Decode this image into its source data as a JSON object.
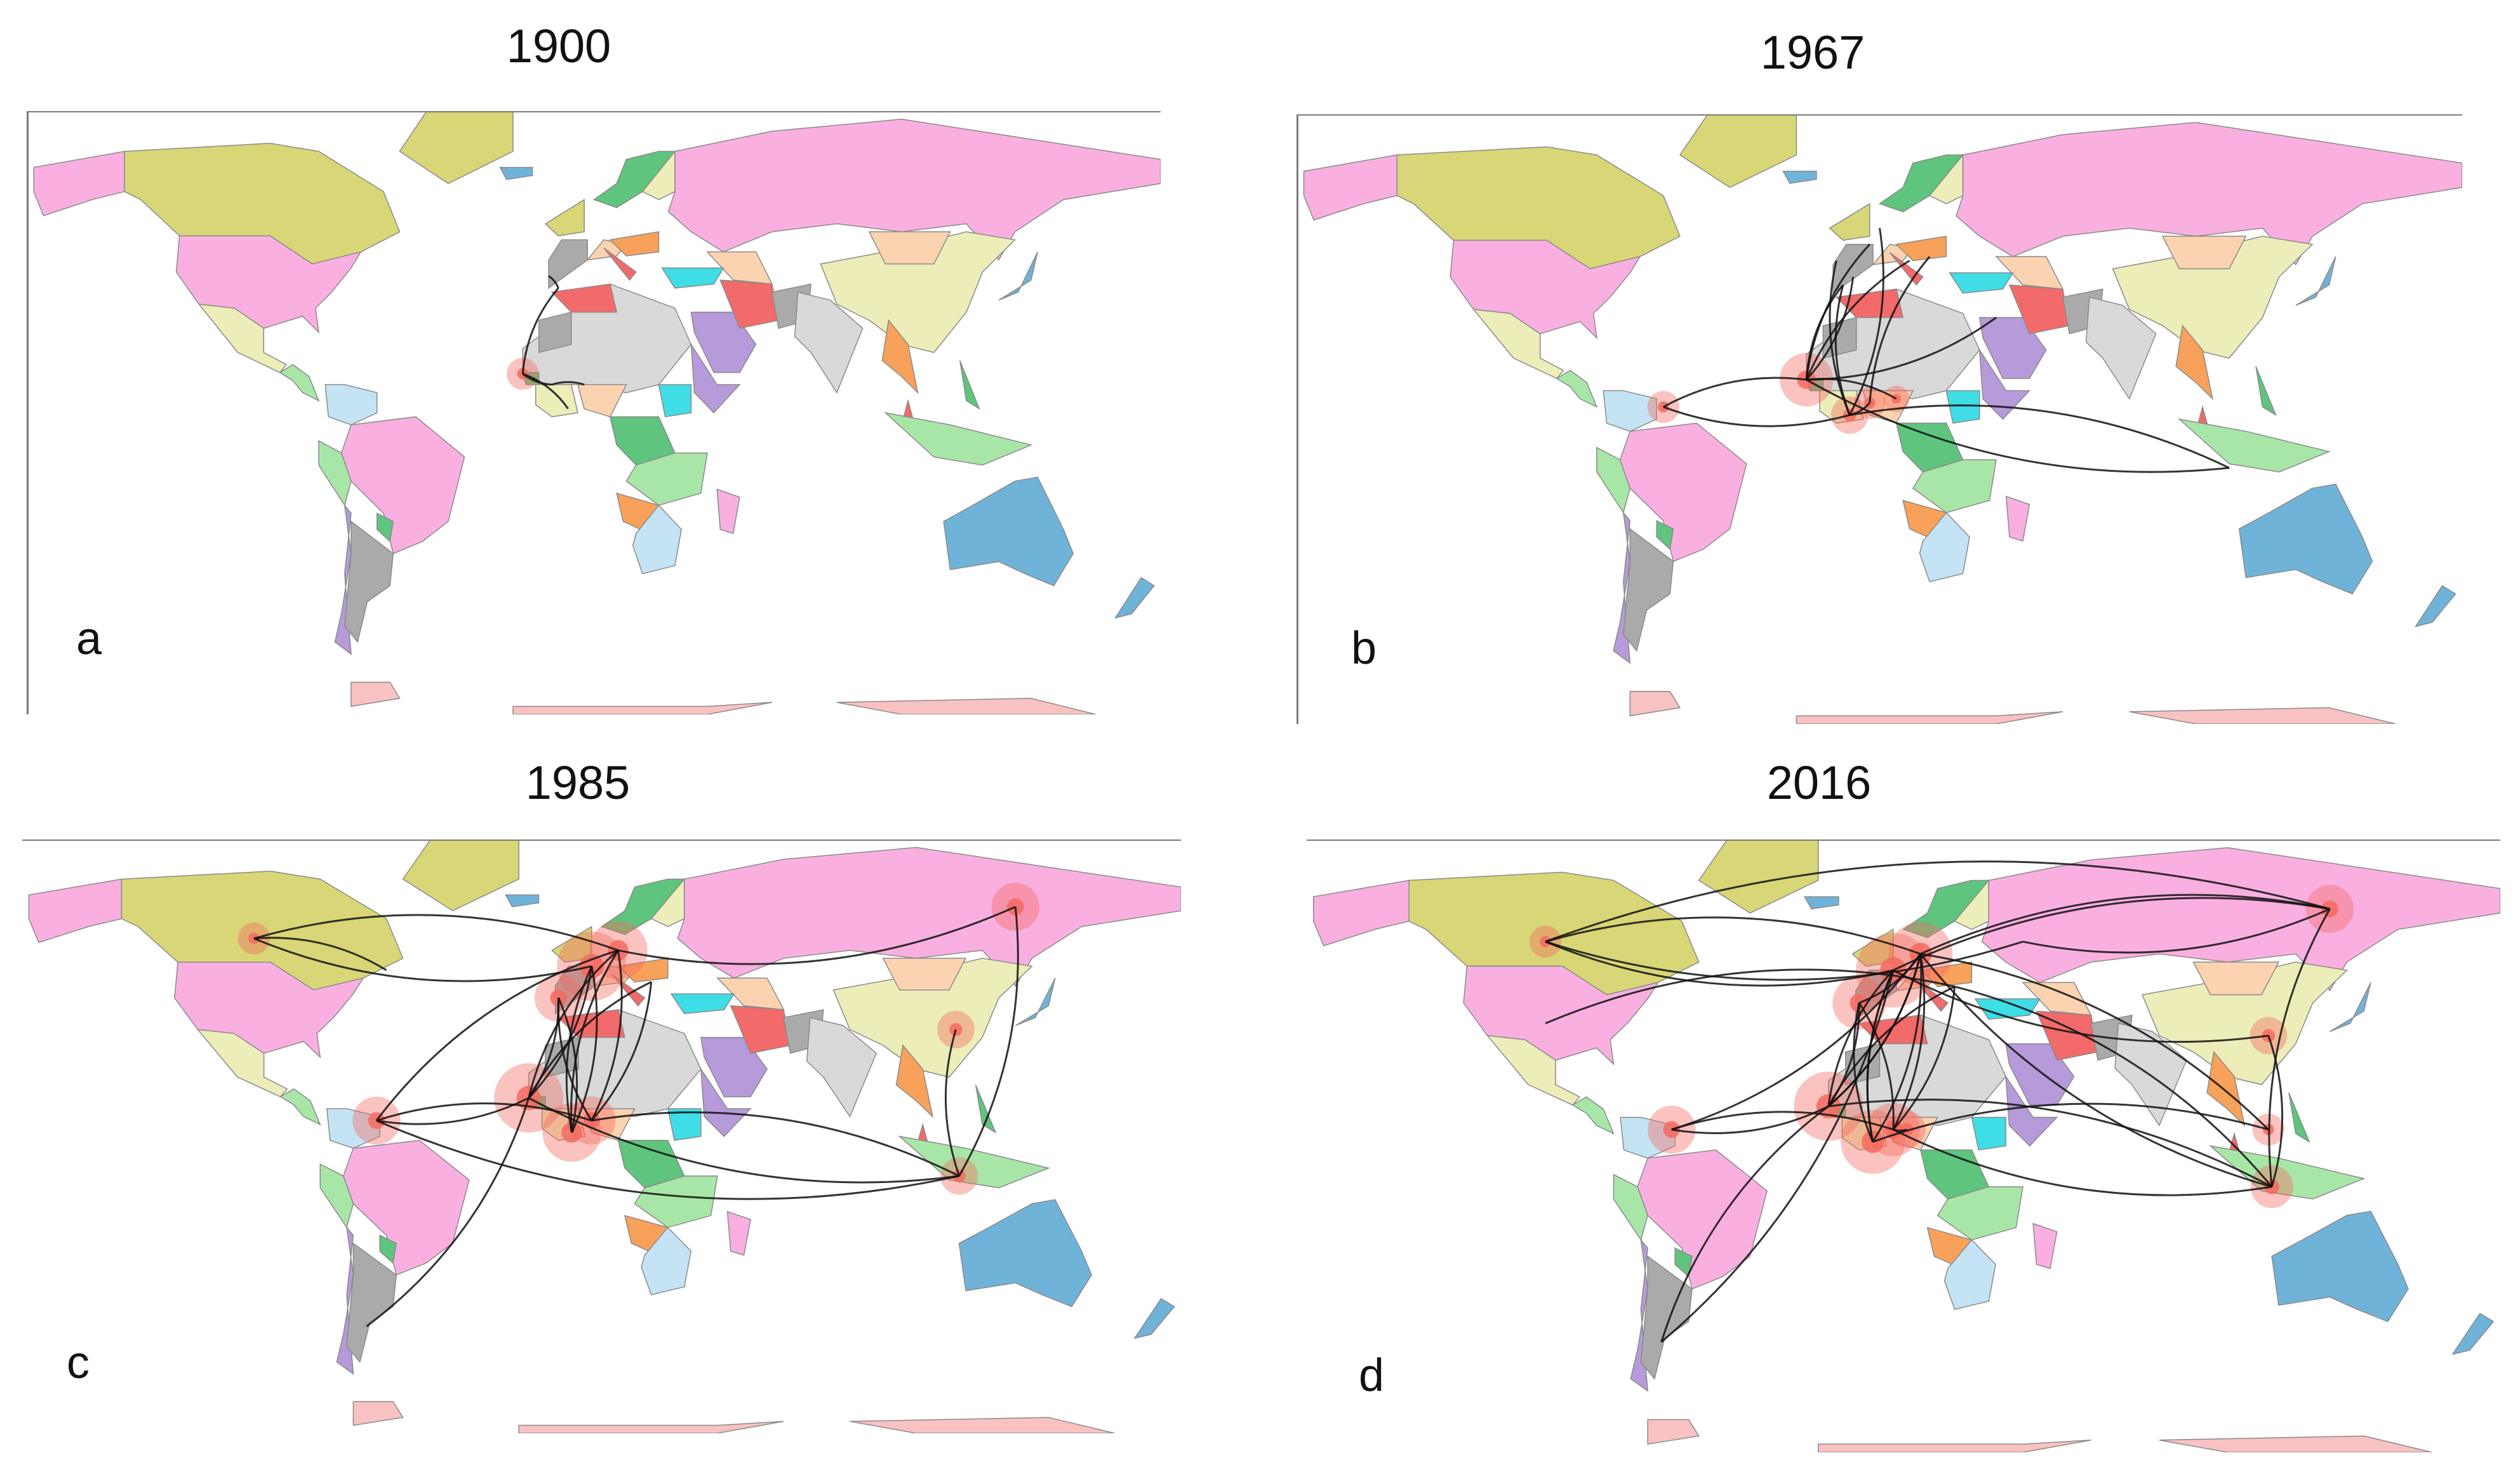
{
  "panels": [
    {
      "id": "a",
      "year": "1900",
      "letter": "a",
      "hubs": [
        [
          -17,
          14.7,
          12
        ]
      ],
      "links": [
        [
          -17,
          14.7,
          -6,
          36
        ],
        [
          -17,
          14.7,
          -8,
          12
        ],
        [
          -8,
          12,
          2,
          12
        ],
        [
          -6,
          36,
          -9,
          39
        ],
        [
          -17,
          14.7,
          -3,
          6
        ]
      ]
    },
    {
      "id": "b",
      "year": "1967",
      "letter": "b",
      "hubs": [
        [
          -17,
          14.7,
          20
        ],
        [
          -4,
          6,
          14
        ],
        [
          -60,
          8,
          12
        ],
        [
          2,
          9,
          12
        ],
        [
          10,
          10,
          10
        ]
      ],
      "links": [
        [
          -17,
          14.7,
          -6,
          38
        ],
        [
          -17,
          14.7,
          -3,
          40
        ],
        [
          -17,
          14.7,
          2,
          48
        ],
        [
          -4,
          6,
          5,
          52
        ],
        [
          -4,
          6,
          -6,
          38
        ],
        [
          -17,
          14.7,
          -60,
          8
        ],
        [
          -4,
          6,
          -60,
          8
        ],
        [
          -17,
          14.7,
          110,
          -7
        ],
        [
          -4,
          6,
          110,
          -7
        ],
        [
          -17,
          14.7,
          40,
          30
        ],
        [
          2,
          9,
          20,
          45
        ],
        [
          -4,
          6,
          2,
          9
        ],
        [
          -17,
          14.7,
          10,
          10
        ],
        [
          -8,
          44,
          -4,
          6
        ],
        [
          -17,
          14.7,
          14,
          44
        ]
      ]
    },
    {
      "id": "c",
      "year": "1985",
      "letter": "c",
      "hubs": [
        [
          -100,
          55,
          12
        ],
        [
          -63,
          9,
          18
        ],
        [
          -17,
          14.7,
          26
        ],
        [
          -4,
          6,
          22
        ],
        [
          2,
          9,
          18
        ],
        [
          2,
          48,
          26
        ],
        [
          10,
          52,
          22
        ],
        [
          -8,
          40,
          18
        ],
        [
          130,
          63,
          18
        ],
        [
          112,
          32,
          14
        ],
        [
          113,
          -5,
          14
        ]
      ],
      "links": [
        [
          -100,
          55,
          10,
          52
        ],
        [
          -100,
          55,
          2,
          48
        ],
        [
          -100,
          55,
          -60,
          47
        ],
        [
          -63,
          9,
          -17,
          14.7
        ],
        [
          -63,
          9,
          2,
          9
        ],
        [
          -63,
          9,
          113,
          -5
        ],
        [
          -63,
          9,
          10,
          52
        ],
        [
          -17,
          14.7,
          2,
          48
        ],
        [
          -17,
          14.7,
          10,
          52
        ],
        [
          -4,
          6,
          2,
          48
        ],
        [
          -4,
          6,
          10,
          52
        ],
        [
          -8,
          40,
          2,
          9
        ],
        [
          -8,
          40,
          -4,
          6
        ],
        [
          -17,
          14.7,
          113,
          -5
        ],
        [
          2,
          9,
          113,
          -5
        ],
        [
          10,
          52,
          130,
          63
        ],
        [
          130,
          63,
          113,
          -5
        ],
        [
          112,
          32,
          113,
          -5
        ],
        [
          -17,
          14.7,
          -66,
          -43
        ],
        [
          2,
          48,
          -4,
          6
        ],
        [
          10,
          52,
          2,
          9
        ],
        [
          -17,
          14.7,
          -8,
          40
        ],
        [
          20,
          44,
          2,
          9
        ],
        [
          20,
          44,
          -17,
          14.7
        ]
      ]
    },
    {
      "id": "d",
      "year": "2016",
      "letter": "d",
      "hubs": [
        [
          -100,
          55,
          12
        ],
        [
          -63,
          9,
          18
        ],
        [
          -17,
          14.7,
          26
        ],
        [
          -4,
          6,
          24
        ],
        [
          2,
          9,
          20
        ],
        [
          6,
          9,
          14
        ],
        [
          2,
          48,
          28
        ],
        [
          10,
          52,
          24
        ],
        [
          -8,
          40,
          20
        ],
        [
          130,
          63,
          18
        ],
        [
          112,
          32,
          14
        ],
        [
          113,
          -5,
          16
        ],
        [
          112,
          9,
          12
        ]
      ],
      "links": [
        [
          -100,
          55,
          10,
          52
        ],
        [
          -100,
          55,
          2,
          48
        ],
        [
          -100,
          55,
          130,
          63
        ],
        [
          -100,
          55,
          40,
          55
        ],
        [
          -100,
          35,
          20,
          44
        ],
        [
          -63,
          9,
          -17,
          14.7
        ],
        [
          -63,
          9,
          2,
          9
        ],
        [
          -63,
          9,
          10,
          52
        ],
        [
          -17,
          14.7,
          2,
          48
        ],
        [
          -17,
          14.7,
          10,
          52
        ],
        [
          -4,
          6,
          2,
          48
        ],
        [
          -4,
          6,
          10,
          52
        ],
        [
          -8,
          40,
          2,
          9
        ],
        [
          -8,
          40,
          -4,
          6
        ],
        [
          -17,
          14.7,
          113,
          -5
        ],
        [
          2,
          9,
          113,
          -5
        ],
        [
          10,
          52,
          130,
          63
        ],
        [
          130,
          63,
          113,
          -5
        ],
        [
          112,
          32,
          113,
          -5
        ],
        [
          -17,
          14.7,
          -66,
          -43
        ],
        [
          2,
          48,
          -66,
          -43
        ],
        [
          10,
          52,
          113,
          -5
        ],
        [
          20,
          44,
          113,
          -5
        ],
        [
          2,
          48,
          112,
          32
        ],
        [
          10,
          52,
          112,
          9
        ],
        [
          2,
          48,
          -4,
          6
        ],
        [
          10,
          52,
          2,
          9
        ],
        [
          -17,
          14.7,
          -8,
          40
        ],
        [
          20,
          44,
          2,
          9
        ],
        [
          20,
          44,
          -17,
          14.7
        ],
        [
          2,
          48,
          130,
          63
        ],
        [
          40,
          55,
          130,
          63
        ],
        [
          -4,
          6,
          112,
          9
        ],
        [
          2,
          9,
          6,
          9
        ],
        [
          10,
          52,
          -17,
          14.7
        ],
        [
          -8,
          40,
          10,
          52
        ]
      ]
    }
  ],
  "colors": {
    "pink": "#f9b0e0",
    "olive": "#d8d677",
    "lightyellow": "#ecedb8",
    "grey": "#aaaaaa",
    "lightgrey": "#d9d9d9",
    "green": "#5fc47d",
    "lightgreen": "#a8e6a8",
    "blue": "#6fb3d9",
    "cyan": "#3fdde6",
    "lightblue": "#c4e4f5",
    "orange": "#f8a15a",
    "peach": "#fcd3b0",
    "purple": "#b69ad9",
    "salmon": "#f26a6a",
    "lavender": "#c8cff0",
    "antarctica": "#f8c2c2",
    "hub": "#f46a5f",
    "link": "#111111"
  }
}
